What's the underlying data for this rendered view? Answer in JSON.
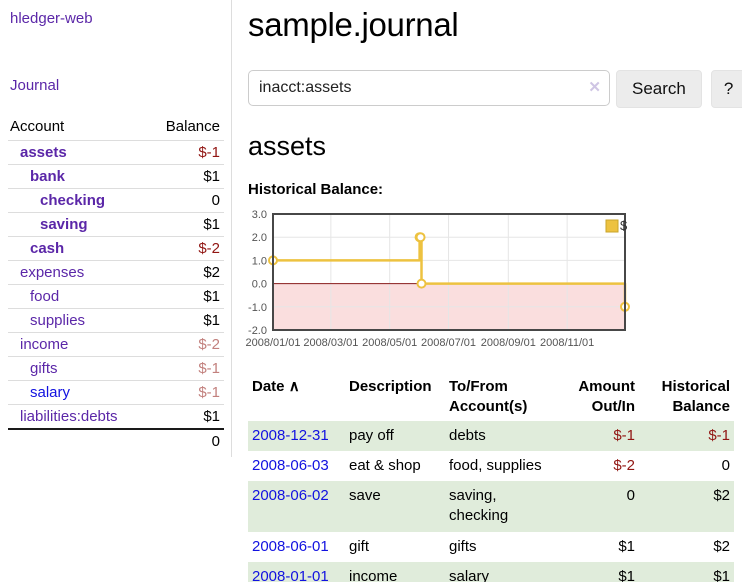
{
  "app": {
    "title": "hledger-web"
  },
  "sidebar": {
    "journal_link": "Journal",
    "accounts_table": {
      "headers": {
        "account": "Account",
        "balance": "Balance"
      },
      "rows": [
        {
          "name": "assets",
          "depth": 0,
          "balance": "$-1",
          "emphasis": true,
          "negative": "strong"
        },
        {
          "name": "bank",
          "depth": 1,
          "balance": "$1",
          "emphasis": true
        },
        {
          "name": "checking",
          "depth": 2,
          "balance": "0",
          "emphasis": true
        },
        {
          "name": "saving",
          "depth": 2,
          "balance": "$1",
          "emphasis": true
        },
        {
          "name": "cash",
          "depth": 1,
          "balance": "$-2",
          "emphasis": true,
          "negative": "strong"
        },
        {
          "name": "expenses",
          "depth": 0,
          "balance": "$2"
        },
        {
          "name": "food",
          "depth": 1,
          "balance": "$1"
        },
        {
          "name": "supplies",
          "depth": 1,
          "balance": "$1"
        },
        {
          "name": "income",
          "depth": 0,
          "balance": "$-2",
          "negative": "soft"
        },
        {
          "name": "gifts",
          "depth": 1,
          "balance": "$-1",
          "negative": "soft"
        },
        {
          "name": "salary",
          "depth": 1,
          "balance": "$-1",
          "negative": "soft",
          "link_state": "unvisited"
        },
        {
          "name": "liabilities:debts",
          "depth": 0,
          "balance": "$1"
        }
      ],
      "total": "0"
    }
  },
  "main": {
    "title": "sample.journal",
    "search": {
      "value": "inacct:assets",
      "clear_icon": "✕",
      "search_button": "Search",
      "help_button": "?"
    },
    "account_heading": "assets",
    "chart_label": "Historical Balance:"
  },
  "chart_data": {
    "type": "line",
    "title": "Historical Balance:",
    "series": [
      {
        "name": "$",
        "color": "#edc240",
        "step": true,
        "points": [
          [
            "2008-01-01",
            1
          ],
          [
            "2008-06-01",
            2
          ],
          [
            "2008-06-02",
            2
          ],
          [
            "2008-06-03",
            0
          ],
          [
            "2008-12-31",
            -1
          ]
        ]
      }
    ],
    "xlim": [
      "2008-01-01",
      "2008-12-31"
    ],
    "ylim": [
      -2,
      3
    ],
    "x_ticks": [
      "2008/01/01",
      "2008/03/01",
      "2008/05/01",
      "2008/07/01",
      "2008/09/01",
      "2008/11/01"
    ],
    "y_ticks": [
      3.0,
      2.0,
      1.0,
      0.0,
      -1.0,
      -2.0
    ],
    "legend": {
      "label": "$",
      "position": "top-right"
    },
    "colors": {
      "negative_region": "#fadede",
      "zero_line": "#8b1d1d",
      "grid": "#e6e6e6",
      "border": "#474747",
      "marker_fill": "#ffffff"
    }
  },
  "register_table": {
    "headers": [
      "Date",
      "Description",
      "To/From Account(s)",
      "Amount Out/In",
      "Historical Balance"
    ],
    "sort_indicator": "∧",
    "rows": [
      {
        "date": "2008-12-31",
        "description": "pay off",
        "accounts": "debts",
        "amount": "$-1",
        "amount_negative": true,
        "balance": "$-1",
        "balance_negative": true
      },
      {
        "date": "2008-06-03",
        "description": "eat & shop",
        "accounts": "food, supplies",
        "amount": "$-2",
        "amount_negative": true,
        "balance": "0",
        "balance_negative": false
      },
      {
        "date": "2008-06-02",
        "description": "save",
        "accounts": "saving, checking",
        "amount": "0",
        "amount_negative": false,
        "balance": "$2",
        "balance_negative": false
      },
      {
        "date": "2008-06-01",
        "description": "gift",
        "accounts": "gifts",
        "amount": "$1",
        "amount_negative": false,
        "balance": "$2",
        "balance_negative": false
      },
      {
        "date": "2008-01-01",
        "description": "income",
        "accounts": "salary",
        "amount": "$1",
        "amount_negative": false,
        "balance": "$1",
        "balance_negative": false
      }
    ]
  }
}
